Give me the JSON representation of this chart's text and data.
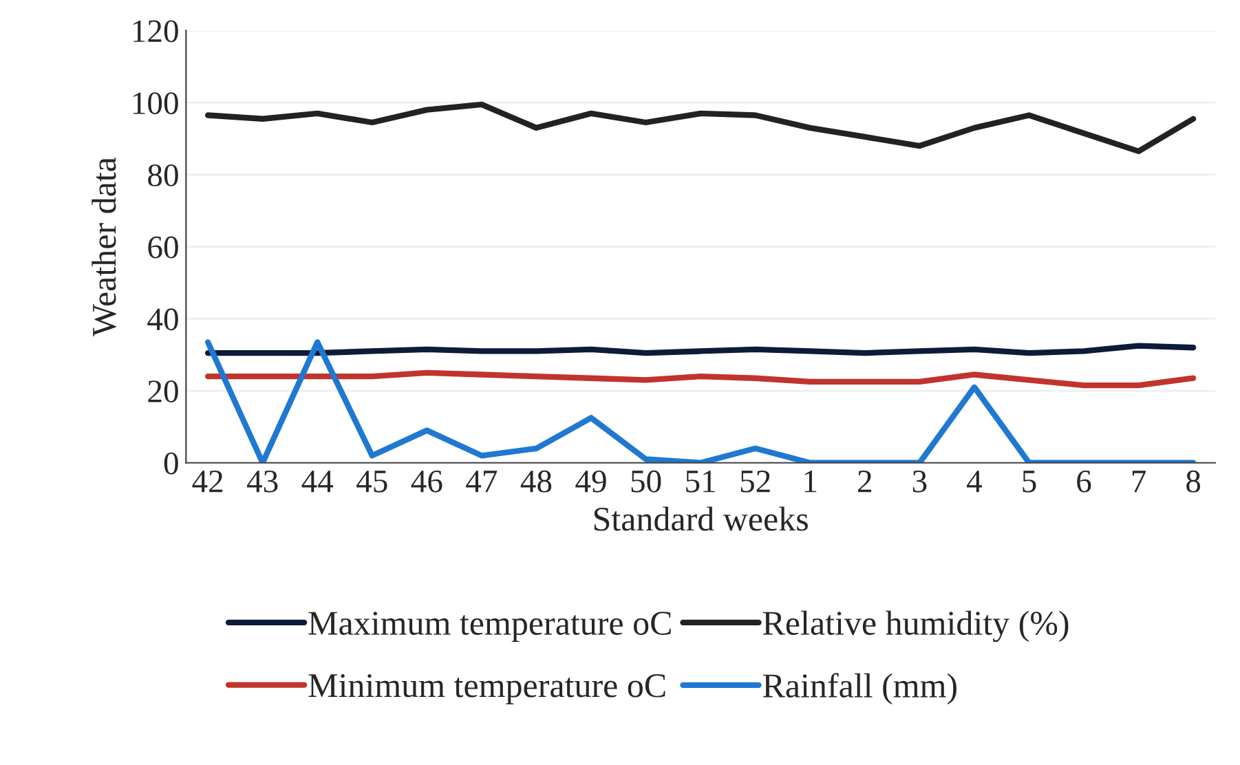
{
  "chart_data": {
    "type": "line",
    "xlabel": "Standard weeks",
    "ylabel": "Weather data",
    "categories": [
      "42",
      "43",
      "44",
      "45",
      "46",
      "47",
      "48",
      "49",
      "50",
      "51",
      "52",
      "1",
      "2",
      "3",
      "4",
      "5",
      "6",
      "7",
      "8"
    ],
    "series": [
      {
        "name": "Maximum temperature oC",
        "color": "#0d1a3a",
        "values": [
          30.5,
          30.5,
          30.5,
          31,
          31.5,
          31,
          31,
          31.5,
          30.5,
          31,
          31.5,
          31,
          30.5,
          31,
          31.5,
          30.5,
          31,
          32.5,
          32
        ]
      },
      {
        "name": "Minimum temperature oC",
        "color": "#c0342c",
        "values": [
          24,
          24,
          24,
          24,
          25,
          24.5,
          24,
          23.5,
          23,
          24,
          23.5,
          22.5,
          22.5,
          22.5,
          24.5,
          23,
          21.5,
          21.5,
          23.5
        ]
      },
      {
        "name": "Relative humidity (%)",
        "color": "#222222",
        "values": [
          96.5,
          95.5,
          97,
          94.5,
          98,
          99.5,
          93,
          97,
          94.5,
          97,
          96.5,
          93,
          90.5,
          88,
          93,
          96.5,
          91.5,
          86.5,
          95.5
        ]
      },
      {
        "name": "Rainfall (mm)",
        "color": "#1f78d1",
        "values": [
          33.5,
          0,
          33.5,
          2,
          9,
          2,
          4,
          12.5,
          1,
          0,
          4,
          0,
          0,
          0,
          21,
          0,
          0,
          0,
          0
        ]
      }
    ],
    "ylim": [
      0,
      120
    ],
    "yticks": [
      0,
      20,
      40,
      60,
      80,
      100,
      120
    ],
    "grid": "y",
    "legend": "bottom",
    "line_style": "solid",
    "marker": "none"
  }
}
